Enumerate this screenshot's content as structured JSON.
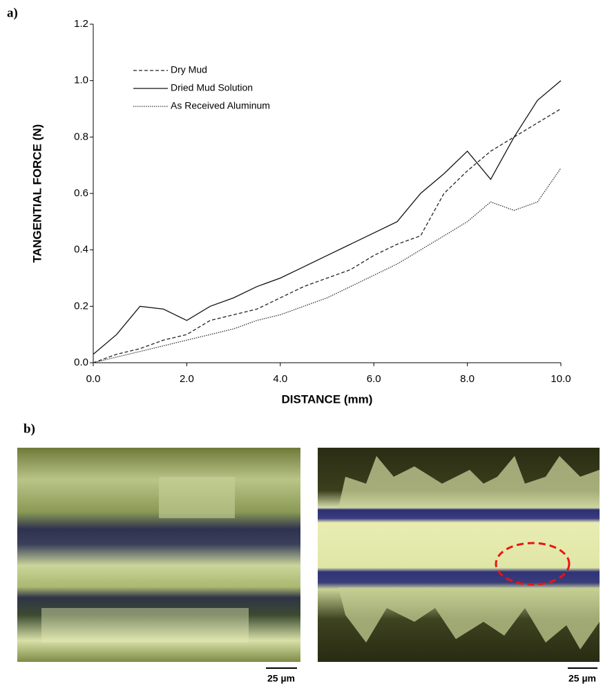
{
  "chart_data": {
    "type": "line",
    "xlabel": "DISTANCE (mm)",
    "ylabel": "TANGENTIAL FORCE (N)",
    "x": [
      0,
      0.5,
      1,
      1.5,
      2,
      2.5,
      3,
      3.5,
      4,
      4.5,
      5,
      5.5,
      6,
      6.5,
      7,
      7.5,
      8,
      8.5,
      9,
      9.5,
      10
    ],
    "series": [
      {
        "name": "Dry Mud",
        "color": "#222222",
        "style": "dashed",
        "values": [
          0.0,
          0.03,
          0.05,
          0.08,
          0.1,
          0.15,
          0.17,
          0.19,
          0.23,
          0.27,
          0.3,
          0.33,
          0.38,
          0.42,
          0.45,
          0.6,
          0.68,
          0.75,
          0.8,
          0.85,
          0.9
        ]
      },
      {
        "name": "Dried Mud Solution",
        "color": "#111111",
        "style": "solid",
        "values": [
          0.03,
          0.1,
          0.2,
          0.19,
          0.15,
          0.2,
          0.23,
          0.27,
          0.3,
          0.34,
          0.38,
          0.42,
          0.46,
          0.5,
          0.6,
          0.67,
          0.75,
          0.65,
          0.8,
          0.93,
          1.0
        ]
      },
      {
        "name": "As Received Aluminum",
        "color": "#333333",
        "style": "dotted",
        "values": [
          0.0,
          0.02,
          0.04,
          0.06,
          0.08,
          0.1,
          0.12,
          0.15,
          0.17,
          0.2,
          0.23,
          0.27,
          0.31,
          0.35,
          0.4,
          0.45,
          0.5,
          0.57,
          0.54,
          0.57,
          0.69
        ]
      }
    ],
    "xlim": [
      0,
      10
    ],
    "xticks": [
      {
        "value": 0,
        "label": "0.0"
      },
      {
        "value": 2,
        "label": "2.0"
      },
      {
        "value": 4,
        "label": "4.0"
      },
      {
        "value": 6,
        "label": "6.0"
      },
      {
        "value": 8,
        "label": "8.0"
      },
      {
        "value": 10,
        "label": "10.0"
      }
    ],
    "ylim": [
      0,
      1.2
    ],
    "yticks": [
      {
        "value": 0,
        "label": "0.0"
      },
      0.2,
      0.4,
      0.6,
      0.8,
      {
        "value": 1,
        "label": "1.0"
      },
      1.2
    ],
    "grid": false,
    "legend": "top-left"
  },
  "panel_labels": [
    "a)",
    "b)"
  ],
  "micrographs": [
    {
      "scale_bar": "25 µm"
    },
    {
      "scale_bar": "25 µm"
    }
  ]
}
